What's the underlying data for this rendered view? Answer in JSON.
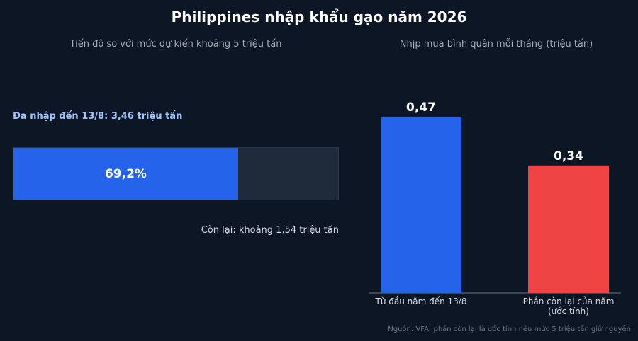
{
  "title": "Philippines nhập khẩu gạo năm 2026",
  "left_panel": {
    "subtitle": "Tiến độ so với mức dự kiến khoảng 5 triệu tấn",
    "imported_label": "Đã nhập đến 13/8: 3,46 triệu tấn",
    "progress_fraction": 0.692,
    "progress_text": "69,2%",
    "remaining_label": "Còn lại: khoảng 1,54 triệu tấn"
  },
  "right_panel": {
    "subtitle": "Nhịp mua bình quân mỗi tháng (triệu tấn)"
  },
  "chart_data": {
    "type": "bar",
    "categories": [
      "Từ đầu năm đến 13/8",
      "Phần còn lại của năm (ước tính)"
    ],
    "category_lines": [
      [
        "Từ đầu năm đến 13/8"
      ],
      [
        "Phần còn lại của năm",
        "(ước tính)"
      ]
    ],
    "values": [
      0.47,
      0.34
    ],
    "value_labels": [
      "0,47",
      "0,34"
    ],
    "colors": [
      "#2563eb",
      "#ef4444"
    ],
    "ylim": [
      0,
      0.5
    ]
  },
  "source": "Nguồn: VFA; phần còn lại là ước tính nếu mức 5 triệu tấn giữ nguyên"
}
